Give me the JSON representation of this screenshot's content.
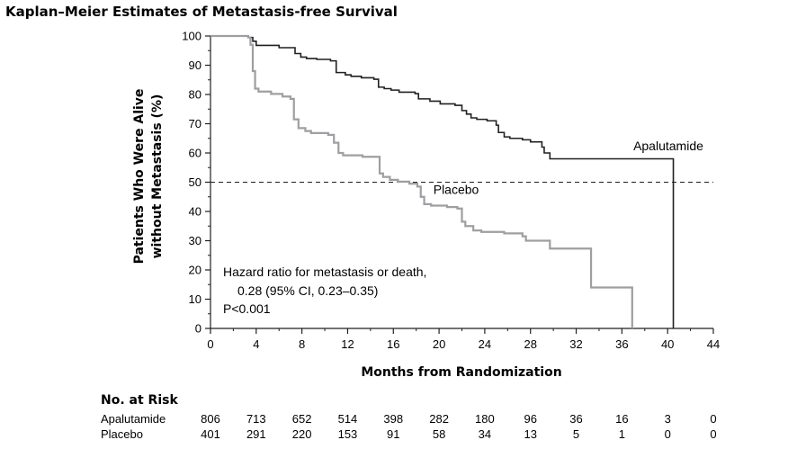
{
  "chart_data": {
    "type": "line",
    "title": "Kaplan–Meier Estimates of Metastasis-free Survival",
    "xlabel": "Months from Randomization",
    "ylabel_lines": [
      "Patients Who Were Alive",
      "without Metastasis (%)"
    ],
    "xlim": [
      0,
      44
    ],
    "ylim": [
      0,
      100
    ],
    "xticks": [
      "0",
      "4",
      "8",
      "12",
      "16",
      "20",
      "24",
      "28",
      "32",
      "36",
      "40",
      "44"
    ],
    "yticks": [
      "0",
      "10",
      "20",
      "30",
      "40",
      "50",
      "60",
      "70",
      "80",
      "90",
      "100"
    ],
    "grid": false,
    "reference_line": {
      "y": 50,
      "style": "dashed"
    },
    "series": [
      {
        "name": "Apalutamide",
        "color": "#231f20",
        "points": [
          [
            0,
            100
          ],
          [
            2.5,
            100
          ],
          [
            3.3,
            99.5
          ],
          [
            3.7,
            98.2
          ],
          [
            4,
            96.8
          ],
          [
            6,
            96
          ],
          [
            7.4,
            94
          ],
          [
            7.9,
            92.8
          ],
          [
            8.4,
            92.3
          ],
          [
            9.3,
            92
          ],
          [
            10.5,
            91.5
          ],
          [
            11,
            87.5
          ],
          [
            11.8,
            86.7
          ],
          [
            12.3,
            86.2
          ],
          [
            13.2,
            85.7
          ],
          [
            14.3,
            85.2
          ],
          [
            14.7,
            82.5
          ],
          [
            15.2,
            82
          ],
          [
            15.8,
            81.5
          ],
          [
            16.5,
            80.8
          ],
          [
            17.9,
            80.3
          ],
          [
            18.2,
            78.5
          ],
          [
            19.2,
            77.7
          ],
          [
            20.1,
            76.8
          ],
          [
            21.4,
            76.3
          ],
          [
            22,
            74.5
          ],
          [
            22.4,
            73.3
          ],
          [
            22.8,
            72
          ],
          [
            23.3,
            71.5
          ],
          [
            24.2,
            71
          ],
          [
            25,
            69.5
          ],
          [
            25.2,
            67
          ],
          [
            25.7,
            65.5
          ],
          [
            26.2,
            65
          ],
          [
            27.3,
            64.5
          ],
          [
            28,
            63.8
          ],
          [
            29,
            62
          ],
          [
            29.2,
            60
          ],
          [
            29.7,
            58
          ],
          [
            40.5,
            58
          ],
          [
            40.5,
            0
          ]
        ]
      },
      {
        "name": "Placebo",
        "color": "#9d9fa2",
        "points": [
          [
            0,
            100
          ],
          [
            2.5,
            100
          ],
          [
            3.3,
            99.5
          ],
          [
            3.5,
            97
          ],
          [
            3.7,
            88
          ],
          [
            3.9,
            82
          ],
          [
            4.2,
            81
          ],
          [
            5.3,
            80.2
          ],
          [
            6.3,
            79.3
          ],
          [
            7,
            78.5
          ],
          [
            7.3,
            71.5
          ],
          [
            7.7,
            68.5
          ],
          [
            8.3,
            67.5
          ],
          [
            8.8,
            66.8
          ],
          [
            10.3,
            66.2
          ],
          [
            10.8,
            63.5
          ],
          [
            11.2,
            60
          ],
          [
            11.6,
            59.2
          ],
          [
            13.3,
            58.7
          ],
          [
            14.6,
            58.7
          ],
          [
            14.8,
            53
          ],
          [
            15.1,
            51.8
          ],
          [
            15.7,
            50.8
          ],
          [
            16.4,
            50.2
          ],
          [
            17.4,
            49.5
          ],
          [
            18.1,
            48.5
          ],
          [
            18.4,
            45
          ],
          [
            18.7,
            42.5
          ],
          [
            19.3,
            42
          ],
          [
            20.7,
            41.5
          ],
          [
            21.6,
            41
          ],
          [
            22,
            36.5
          ],
          [
            22.3,
            35
          ],
          [
            23,
            33.5
          ],
          [
            23.7,
            33
          ],
          [
            25.7,
            32.5
          ],
          [
            27.3,
            31.5
          ],
          [
            27.6,
            30
          ],
          [
            29.6,
            30
          ],
          [
            29.7,
            27.3
          ],
          [
            33.3,
            27.3
          ],
          [
            33.3,
            14
          ],
          [
            36.9,
            14
          ],
          [
            36.9,
            0
          ]
        ]
      }
    ],
    "series_labels": [
      {
        "text": "Apalutamide",
        "x": 37,
        "y": 61
      },
      {
        "text": "Placebo",
        "x": 19.5,
        "y": 46
      }
    ],
    "annotation": {
      "lines": [
        "Hazard ratio for metastasis or death,",
        "0.28 (95% CI, 0.23–0.35)",
        "P<0.001"
      ]
    }
  },
  "risk_table": {
    "title": "No. at Risk",
    "rows": [
      {
        "label": "Apalutamide",
        "values": [
          "806",
          "713",
          "652",
          "514",
          "398",
          "282",
          "180",
          "96",
          "36",
          "16",
          "3",
          "0"
        ]
      },
      {
        "label": "Placebo",
        "values": [
          "401",
          "291",
          "220",
          "153",
          "91",
          "58",
          "34",
          "13",
          "5",
          "1",
          "0",
          "0"
        ]
      }
    ]
  }
}
